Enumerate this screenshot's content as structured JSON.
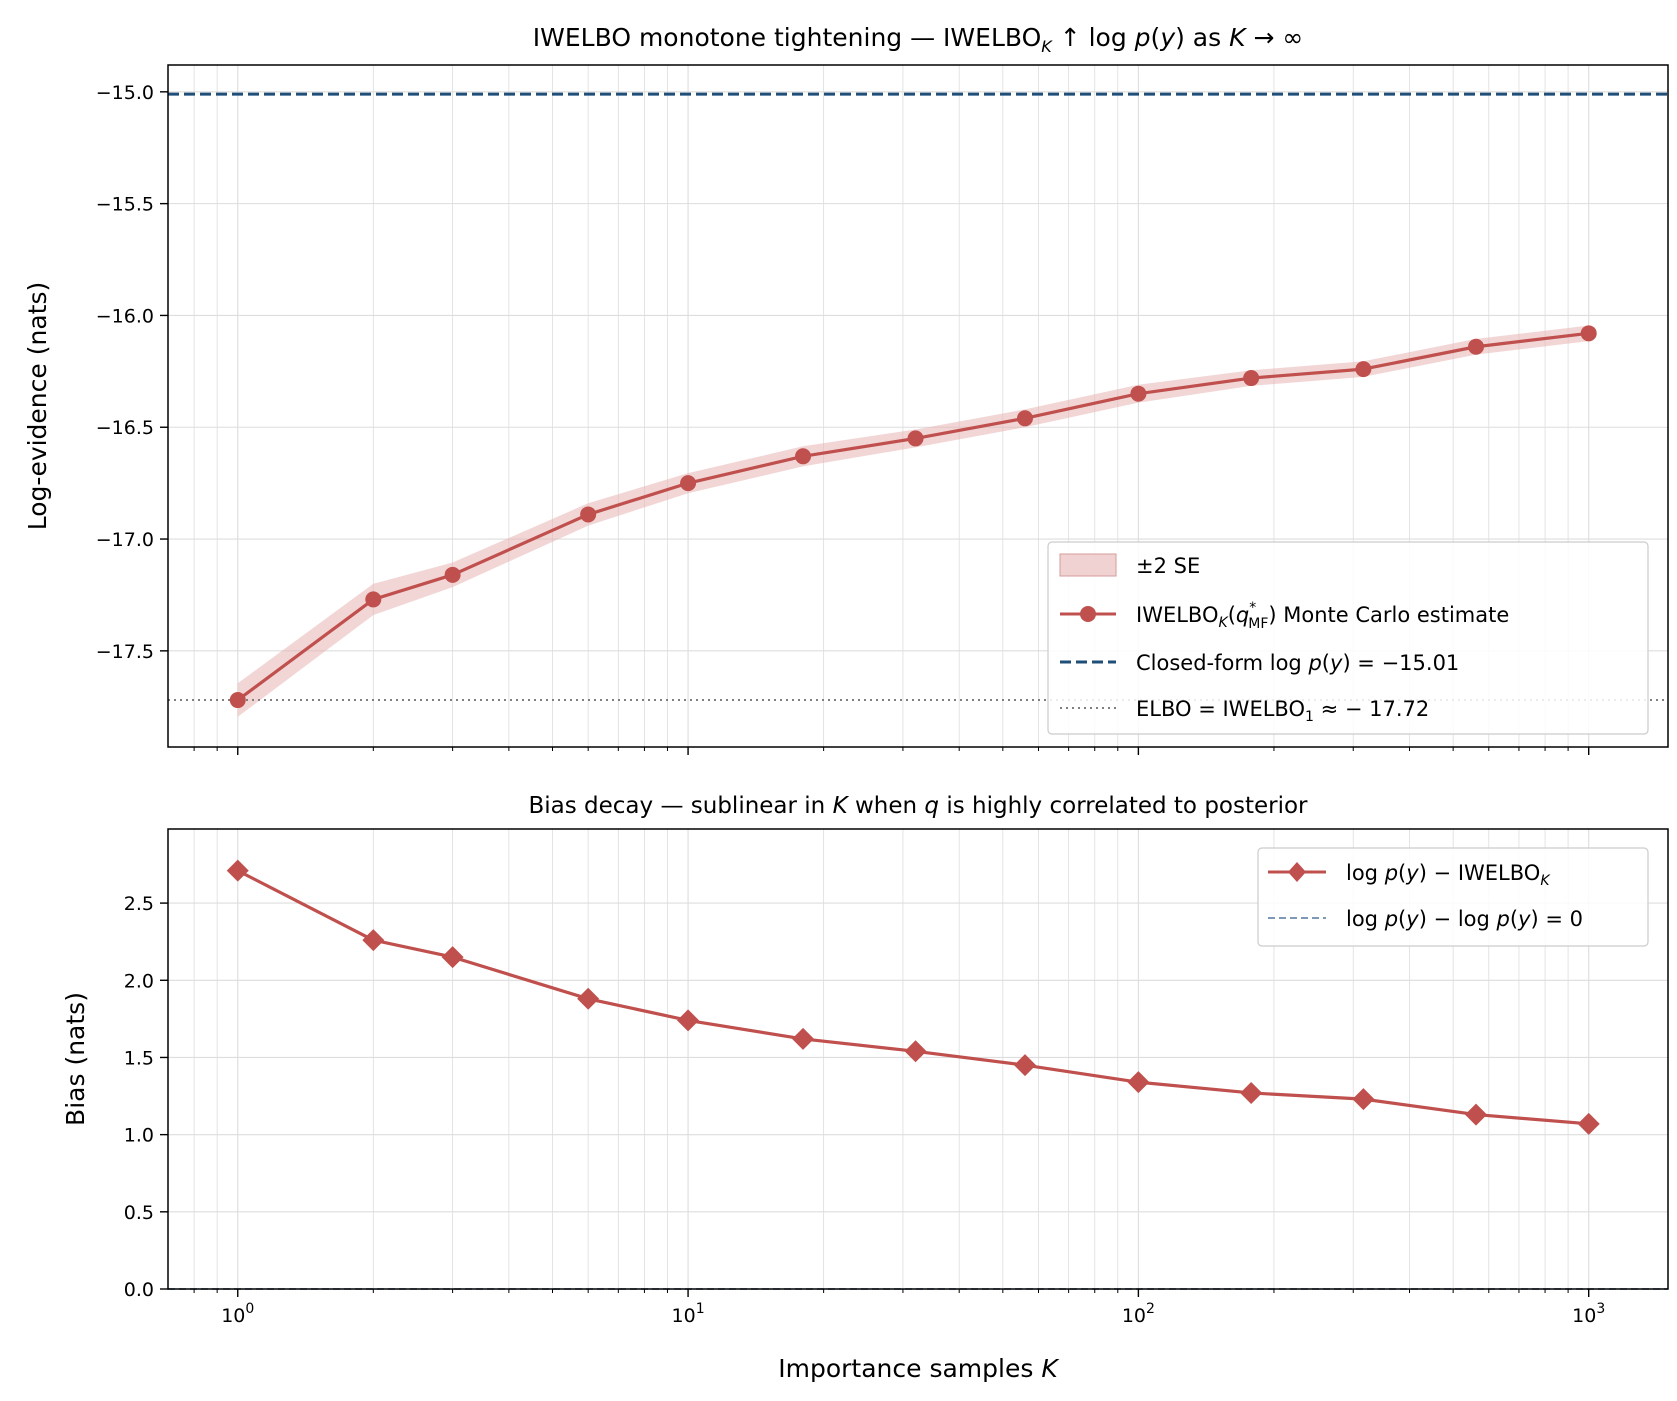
{
  "chart_data": [
    {
      "type": "line",
      "title_parts": [
        "IWELBO monotone tightening — IWELBO",
        "K",
        " ↑ log ",
        "p",
        "(",
        "y",
        ") as ",
        "K",
        " → ∞"
      ],
      "xlabel": "",
      "ylabel": "Log-evidence (nats)",
      "xscale": "log",
      "xlim": [
        0.7,
        1500
      ],
      "ylim": [
        -17.93,
        -14.88
      ],
      "yticks": [
        -15.0,
        -15.5,
        -16.0,
        -16.5,
        -17.0,
        -17.5
      ],
      "ytick_labels": [
        "−15.0",
        "−15.5",
        "−16.0",
        "−16.5",
        "−17.0",
        "−17.5"
      ],
      "grid": true,
      "legend_position": "lower-right",
      "x": [
        1,
        2,
        3,
        6,
        10,
        18,
        32,
        56,
        100,
        178,
        316,
        562,
        1000
      ],
      "series": [
        {
          "name": "IWELBO_K(q*_MF) Monte Carlo estimate",
          "legend_parts": [
            "IWELBO",
            "K",
            "(",
            "q",
            "*",
            "MF",
            ") Monte Carlo estimate"
          ],
          "values": [
            -17.72,
            -17.27,
            -17.16,
            -16.89,
            -16.75,
            -16.63,
            -16.55,
            -16.46,
            -16.35,
            -16.28,
            -16.24,
            -16.14,
            -16.08
          ],
          "marker": "circle",
          "color": "#c0504d"
        },
        {
          "name": "±2 SE",
          "type": "band",
          "half_width": [
            0.075,
            0.07,
            0.055,
            0.05,
            0.045,
            0.045,
            0.04,
            0.04,
            0.04,
            0.035,
            0.035,
            0.035,
            0.035
          ],
          "color": "#e8b4b4"
        },
        {
          "name": "Closed-form log p(y) = −15.01",
          "legend_parts": [
            "Closed-form log ",
            "p",
            "(",
            "y",
            ") = −15.01"
          ],
          "type": "hline",
          "value": -15.01,
          "style": "dashed",
          "color": "#1f4e79"
        },
        {
          "name": "ELBO = IWELBO_1 ≈ −17.72",
          "legend_parts": [
            "ELBO  = IWELBO",
            "1",
            " ≈ − 17.72"
          ],
          "type": "hline",
          "value": -17.72,
          "style": "dotted",
          "color": "#808080"
        }
      ]
    },
    {
      "type": "line",
      "title_parts": [
        "Bias decay — sublinear in ",
        "K",
        " when ",
        "q",
        " is highly correlated to posterior"
      ],
      "xlabel_parts": [
        "Importance samples ",
        "K"
      ],
      "ylabel": "Bias (nats)",
      "xscale": "log",
      "xlim": [
        0.7,
        1500
      ],
      "ylim": [
        0.0,
        2.98
      ],
      "yticks": [
        0.0,
        0.5,
        1.0,
        1.5,
        2.0,
        2.5
      ],
      "ytick_labels": [
        "0.0",
        "0.5",
        "1.0",
        "1.5",
        "2.0",
        "2.5"
      ],
      "xticks": [
        1,
        10,
        100,
        1000
      ],
      "xtick_labels": [
        [
          "10",
          "0"
        ],
        [
          "10",
          "1"
        ],
        [
          "10",
          "2"
        ],
        [
          "10",
          "3"
        ]
      ],
      "grid": true,
      "legend_position": "upper-right",
      "x": [
        1,
        2,
        3,
        6,
        10,
        18,
        32,
        56,
        100,
        178,
        316,
        562,
        1000
      ],
      "series": [
        {
          "name": "log p(y) − IWELBO_K",
          "legend_parts": [
            "log ",
            "p",
            "(",
            "y",
            ") − IWELBO",
            "K"
          ],
          "values": [
            2.71,
            2.26,
            2.15,
            1.88,
            1.74,
            1.62,
            1.54,
            1.45,
            1.34,
            1.27,
            1.23,
            1.13,
            1.07
          ],
          "marker": "diamond",
          "color": "#c0504d"
        },
        {
          "name": "log p(y) − log p(y) = 0",
          "legend_parts": [
            "log ",
            "p",
            "(",
            "y",
            ") − log ",
            "p",
            "(",
            "y",
            ") = 0"
          ],
          "type": "hline",
          "value": 0,
          "style": "dashed",
          "color": "#6a8caf"
        }
      ]
    }
  ]
}
